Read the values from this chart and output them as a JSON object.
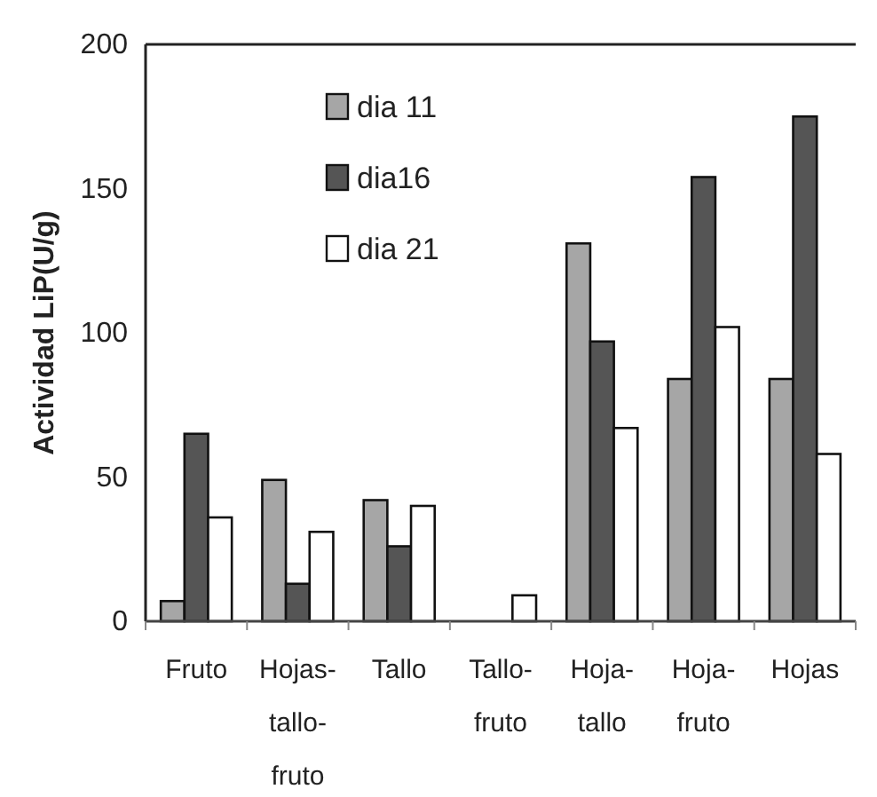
{
  "chart_data": {
    "type": "bar",
    "ylabel": "Actividad LiP(U/g)",
    "categories": [
      "Fruto",
      "Hojas-tallo-fruto",
      "Tallo",
      "Tallo-fruto",
      "Hoja-tallo",
      "Hoja-fruto",
      "Hojas"
    ],
    "series": [
      {
        "name": "dia 11",
        "color": "#a6a6a6",
        "values": [
          7,
          49,
          42,
          0,
          131,
          84,
          84
        ]
      },
      {
        "name": "dia16",
        "color": "#555555",
        "values": [
          65,
          13,
          26,
          0,
          97,
          154,
          175
        ]
      },
      {
        "name": "dia 21",
        "color": "#ffffff",
        "values": [
          36,
          31,
          40,
          9,
          67,
          102,
          58
        ]
      }
    ],
    "ylim": [
      0,
      200
    ],
    "yticks": [
      0,
      50,
      100,
      150,
      200
    ],
    "grid": false,
    "legend": "top left"
  }
}
